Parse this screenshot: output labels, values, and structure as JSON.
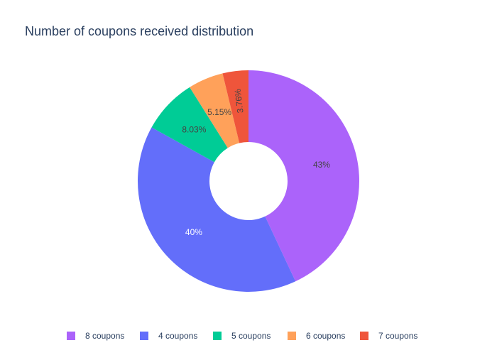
{
  "chart_data": {
    "type": "pie",
    "title": "Number of coupons received distribution",
    "hole": true,
    "legend_placement": "bottom",
    "slices": [
      {
        "label": "8 coupons",
        "percent": 43,
        "display": "43%",
        "color": "#ab63fa",
        "text_color": "#444444"
      },
      {
        "label": "4 coupons",
        "percent": 40,
        "display": "40%",
        "color": "#636efa",
        "text_color": "#ffffff"
      },
      {
        "label": "5 coupons",
        "percent": 8.03,
        "display": "8.03%",
        "color": "#00cc96",
        "text_color": "#444444"
      },
      {
        "label": "6 coupons",
        "percent": 5.15,
        "display": "5.15%",
        "color": "#ffa15a",
        "text_color": "#444444"
      },
      {
        "label": "7 coupons",
        "percent": 3.76,
        "display": "3.76%",
        "color": "#ef553b",
        "text_color": "#444444"
      }
    ]
  }
}
